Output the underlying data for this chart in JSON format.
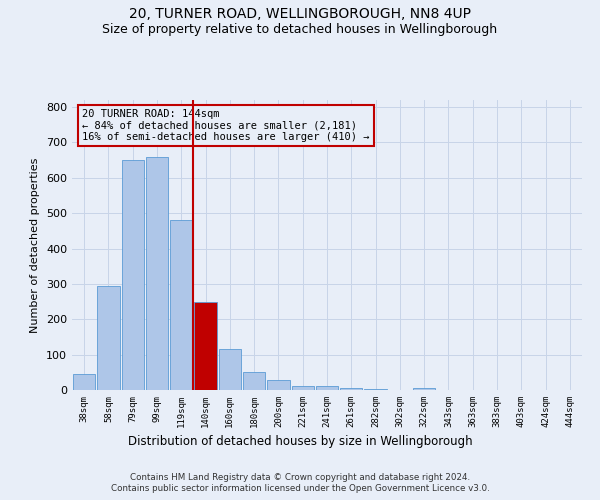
{
  "title": "20, TURNER ROAD, WELLINGBOROUGH, NN8 4UP",
  "subtitle": "Size of property relative to detached houses in Wellingborough",
  "xlabel": "Distribution of detached houses by size in Wellingborough",
  "ylabel": "Number of detached properties",
  "footer1": "Contains HM Land Registry data © Crown copyright and database right 2024.",
  "footer2": "Contains public sector information licensed under the Open Government Licence v3.0.",
  "annotation_title": "20 TURNER ROAD: 144sqm",
  "annotation_line1": "← 84% of detached houses are smaller (2,181)",
  "annotation_line2": "16% of semi-detached houses are larger (410) →",
  "categories": [
    "38sqm",
    "58sqm",
    "79sqm",
    "99sqm",
    "119sqm",
    "140sqm",
    "160sqm",
    "180sqm",
    "200sqm",
    "221sqm",
    "241sqm",
    "261sqm",
    "282sqm",
    "302sqm",
    "322sqm",
    "343sqm",
    "363sqm",
    "383sqm",
    "403sqm",
    "424sqm",
    "444sqm"
  ],
  "values": [
    45,
    295,
    650,
    660,
    480,
    250,
    115,
    50,
    27,
    12,
    10,
    5,
    2,
    1,
    5,
    1,
    1,
    1,
    1,
    1,
    1
  ],
  "bar_color": "#aec6e8",
  "bar_edge_color": "#5b9bd5",
  "highlight_bar_index": 5,
  "highlight_bar_color": "#c00000",
  "vline_color": "#c00000",
  "ylim": [
    0,
    820
  ],
  "yticks": [
    0,
    100,
    200,
    300,
    400,
    500,
    600,
    700,
    800
  ],
  "grid_color": "#c8d4e8",
  "background_color": "#e8eef8",
  "title_fontsize": 10,
  "subtitle_fontsize": 9
}
